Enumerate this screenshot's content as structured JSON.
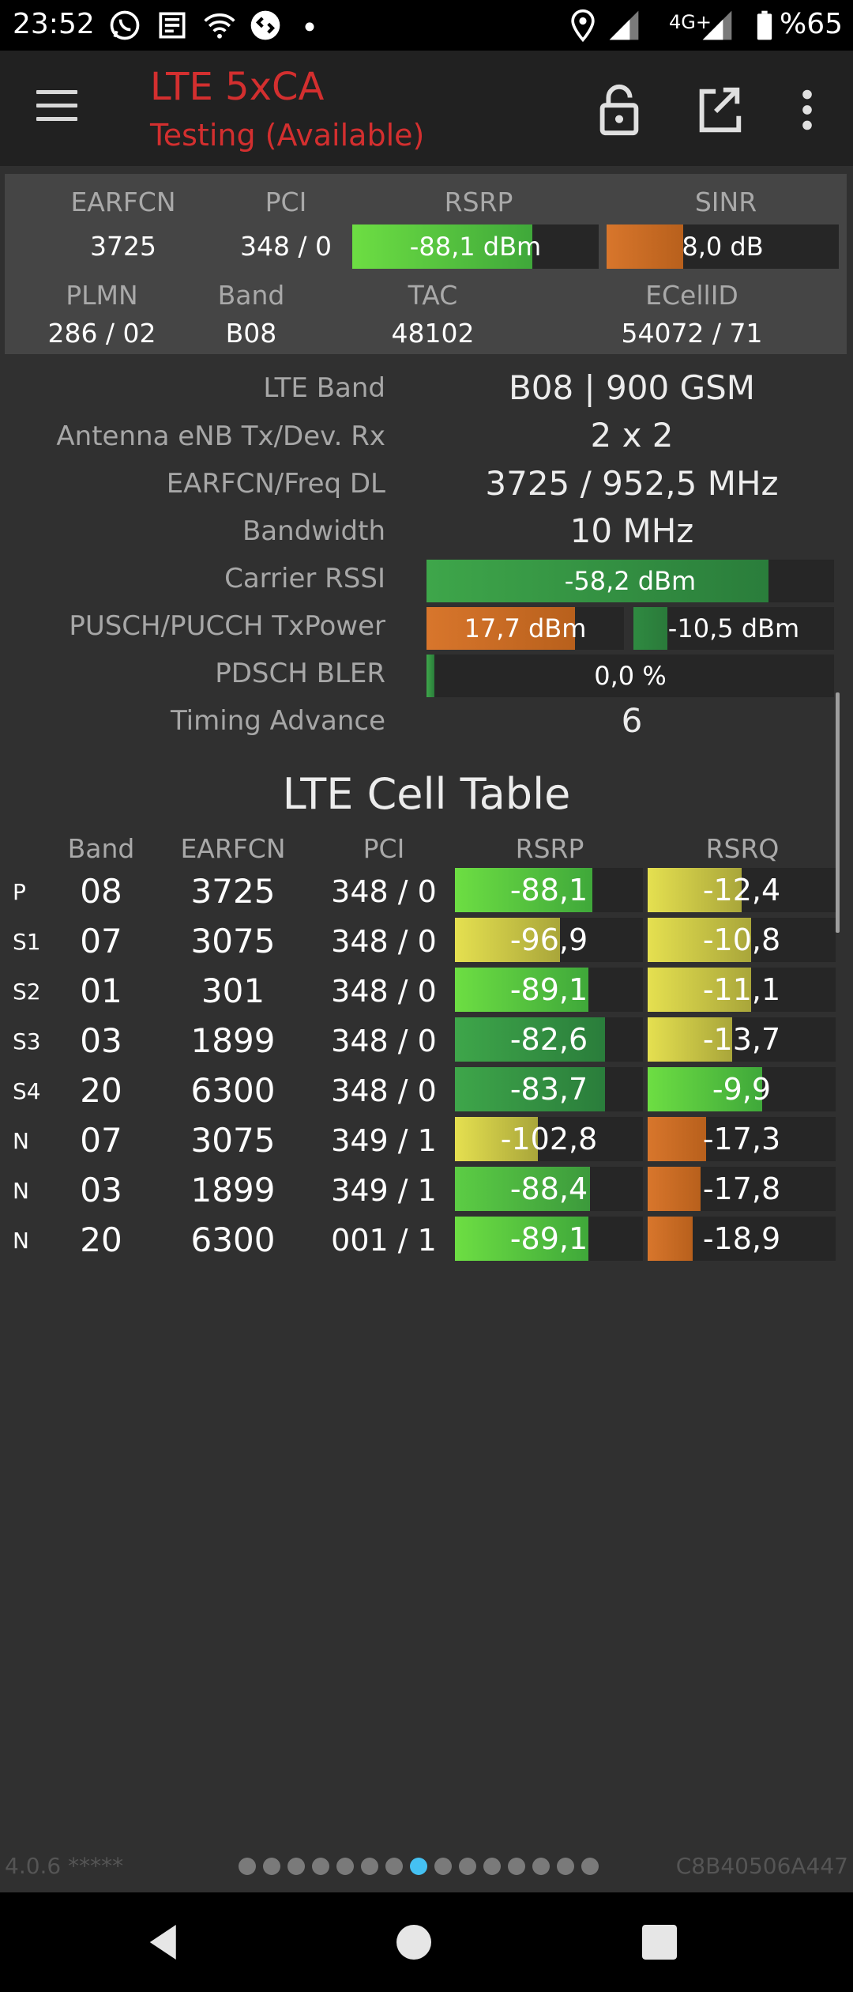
{
  "status_bar": {
    "time": "23:52",
    "network": "4G+",
    "battery": "%65",
    "icons": [
      "whatsapp-icon",
      "news-icon",
      "wifi-icon",
      "shazam-icon",
      "dot-icon",
      "location-icon",
      "signal-icon",
      "signal-icon",
      "battery-icon"
    ]
  },
  "app_bar": {
    "title": "LTE 5xCA",
    "subtitle": "Testing (Available)",
    "title_color": "#d32f2f",
    "actions": [
      "lock-icon",
      "open-external-icon",
      "more-vert-icon"
    ]
  },
  "summary": {
    "labels": {
      "earfcn": "EARFCN",
      "pci": "PCI",
      "rsrp": "RSRP",
      "sinr": "SINR",
      "plmn": "PLMN",
      "band": "Band",
      "tac": "TAC",
      "ecellid": "ECellID"
    },
    "earfcn": "3725",
    "pci": "348 / 0",
    "rsrp": "-88,1 dBm",
    "rsrp_level": 0.73,
    "sinr": "8,0 dB",
    "sinr_level": 0.33,
    "plmn": "286 / 02",
    "band": "B08",
    "tac": "48102",
    "ecellid": "54072 / 71"
  },
  "details": {
    "lte_band_label": "LTE Band",
    "lte_band": "B08 | 900 GSM",
    "antenna_label": "Antenna eNB Tx/Dev. Rx",
    "antenna": "2 x 2",
    "earfcn_freq_label": "EARFCN/Freq DL",
    "earfcn_freq": "3725 / 952,5 MHz",
    "bandwidth_label": "Bandwidth",
    "bandwidth": "10 MHz",
    "carrier_rssi_label": "Carrier RSSI",
    "carrier_rssi": "-58,2 dBm",
    "carrier_rssi_level": 0.84,
    "txpower_label": "PUSCH/PUCCH TxPower",
    "pusch": "17,7 dBm",
    "pusch_level": 0.75,
    "pucch": "-10,5 dBm",
    "pucch_level": 0.17,
    "bler_label": "PDSCH BLER",
    "bler": "0,0 %",
    "bler_level": 0.02,
    "timing_advance_label": "Timing Advance",
    "timing_advance": "6"
  },
  "cell_table": {
    "title": "LTE Cell Table",
    "headers": [
      "Band",
      "EARFCN",
      "PCI",
      "RSRP",
      "RSRQ"
    ],
    "rows": [
      {
        "type": "P",
        "band": "08",
        "earfcn": "3725",
        "pci": "348 / 0",
        "rsrp": "-88,1",
        "rsrp_level": 0.73,
        "rsrp_color": "bright",
        "rsrq": "-12,4",
        "rsrq_level": 0.5,
        "rsrq_color": "yellow"
      },
      {
        "type": "S1",
        "band": "07",
        "earfcn": "3075",
        "pci": "348 / 0",
        "rsrp": "-96,9",
        "rsrp_level": 0.56,
        "rsrp_color": "yellow",
        "rsrq": "-10,8",
        "rsrq_level": 0.55,
        "rsrq_color": "yellow"
      },
      {
        "type": "S2",
        "band": "01",
        "earfcn": "301",
        "pci": "348 / 0",
        "rsrp": "-89,1",
        "rsrp_level": 0.71,
        "rsrp_color": "bright",
        "rsrq": "-11,1",
        "rsrq_level": 0.55,
        "rsrq_color": "yellow"
      },
      {
        "type": "S3",
        "band": "03",
        "earfcn": "1899",
        "pci": "348 / 0",
        "rsrp": "-82,6",
        "rsrp_level": 0.8,
        "rsrp_color": "green",
        "rsrq": "-13,7",
        "rsrq_level": 0.45,
        "rsrq_color": "yellow"
      },
      {
        "type": "S4",
        "band": "20",
        "earfcn": "6300",
        "pci": "348 / 0",
        "rsrp": "-83,7",
        "rsrp_level": 0.8,
        "rsrp_color": "green",
        "rsrq": "-9,9",
        "rsrq_level": 0.61,
        "rsrq_color": "bright"
      },
      {
        "type": "N",
        "band": "07",
        "earfcn": "3075",
        "pci": "349 / 1",
        "rsrp": "-102,8",
        "rsrp_level": 0.44,
        "rsrp_color": "yellow",
        "rsrq": "-17,3",
        "rsrq_level": 0.31,
        "rsrq_color": "orange"
      },
      {
        "type": "N",
        "band": "03",
        "earfcn": "1899",
        "pci": "349 / 1",
        "rsrp": "-88,4",
        "rsrp_level": 0.72,
        "rsrp_color": "mid",
        "rsrq": "-17,8",
        "rsrq_level": 0.28,
        "rsrq_color": "orange"
      },
      {
        "type": "N",
        "band": "20",
        "earfcn": "6300",
        "pci": "001 / 1",
        "rsrp": "-89,1",
        "rsrp_level": 0.71,
        "rsrp_color": "bright",
        "rsrq": "-18,9",
        "rsrq_level": 0.24,
        "rsrq_color": "orange"
      }
    ]
  },
  "footer": {
    "version": "4.0.6 *****",
    "device_id": "C8B40506A447",
    "page_count": 15,
    "active_page": 8
  },
  "nav_bar": [
    "back-icon",
    "home-icon",
    "recents-icon"
  ]
}
